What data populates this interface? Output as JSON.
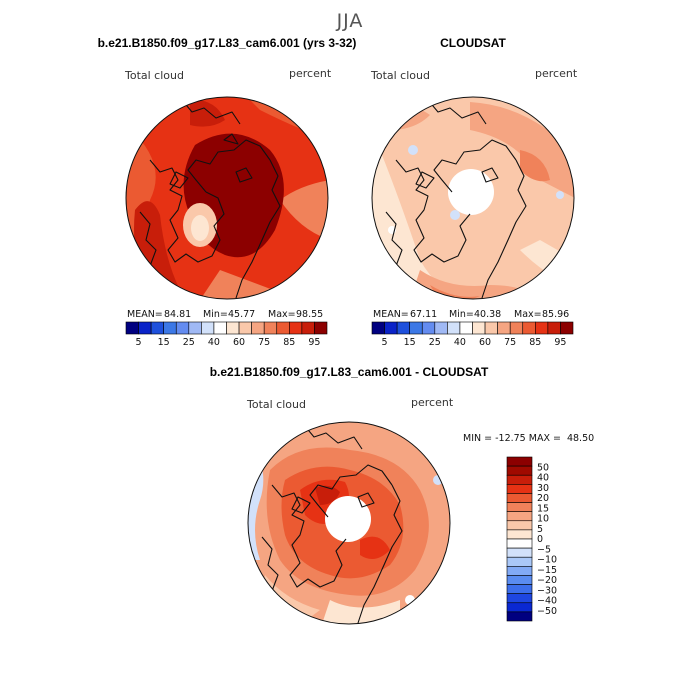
{
  "suptitle": "JJA",
  "colors": {
    "main_scale": [
      "#000080",
      "#0a23c8",
      "#1e50dc",
      "#3c78e6",
      "#648cf0",
      "#a0b9f5",
      "#d2e1fa",
      "#ffffff",
      "#fde6d2",
      "#fac8aa",
      "#f5a582",
      "#f0825a",
      "#eb5a32",
      "#e63214",
      "#c81e0a",
      "#8c0000"
    ],
    "diff_scale": [
      "#000080",
      "#0a28d2",
      "#1e46e1",
      "#3c6eeb",
      "#5a8cf0",
      "#82aaf5",
      "#aac8f8",
      "#d2e1fa",
      "#ffffff",
      "#fde6d2",
      "#fac8aa",
      "#f5a582",
      "#f0825a",
      "#eb5a32",
      "#e63214",
      "#c81e0a",
      "#a00a00",
      "#8c0000"
    ],
    "background": "#ffffff"
  },
  "panels": [
    {
      "id": "model",
      "title": "b.e21.B1850.f09_g17.L83_cam6.001 (yrs 3-32)",
      "left_label": "Total cloud",
      "right_label": "percent",
      "stats": {
        "mean_label": "MEAN=",
        "mean": "84.81",
        "min_label": "Min=",
        "min": "45.77",
        "max_label": "Max=",
        "max": "98.55"
      },
      "colorbar_ticks": [
        "5",
        "15",
        "25",
        "40",
        "60",
        "75",
        "85",
        "95"
      ],
      "pole_hole": false
    },
    {
      "id": "obs",
      "title": "CLOUDSAT",
      "left_label": "Total cloud",
      "right_label": "percent",
      "stats": {
        "mean_label": "MEAN=",
        "mean": "67.11",
        "min_label": "Min=",
        "min": "40.38",
        "max_label": "Max=",
        "max": "85.96"
      },
      "colorbar_ticks": [
        "5",
        "15",
        "25",
        "40",
        "60",
        "75",
        "85",
        "95"
      ],
      "pole_hole": true
    },
    {
      "id": "diff",
      "title": "b.e21.B1850.f09_g17.L83_cam6.001 - CLOUDSAT",
      "left_label": "Total cloud",
      "right_label": "percent",
      "minmax_text": "MIN = -12.75 MAX =  48.50",
      "colorbar_ticks": [
        "50",
        "40",
        "30",
        "20",
        "15",
        "10",
        "5",
        "0",
        "−5",
        "−10",
        "−15",
        "−20",
        "−30",
        "−40",
        "−50"
      ],
      "pole_hole": true
    }
  ],
  "chart_data": [
    {
      "type": "heatmap",
      "projection": "polar-stereographic (north)",
      "title": "b.e21.B1850.f09_g17.L83_cam6.001 (yrs 3-32)",
      "variable": "Total cloud",
      "units": "percent",
      "season": "JJA",
      "mean": 84.81,
      "min": 45.77,
      "max": 98.55,
      "levels": [
        5,
        10,
        15,
        20,
        25,
        30,
        40,
        50,
        60,
        70,
        75,
        80,
        85,
        90,
        95
      ],
      "colorbar_tick_labels": [
        5,
        15,
        25,
        40,
        60,
        75,
        85,
        95
      ]
    },
    {
      "type": "heatmap",
      "projection": "polar-stereographic (north)",
      "title": "CLOUDSAT",
      "variable": "Total cloud",
      "units": "percent",
      "season": "JJA",
      "mean": 67.11,
      "min": 40.38,
      "max": 85.96,
      "levels": [
        5,
        10,
        15,
        20,
        25,
        30,
        40,
        50,
        60,
        70,
        75,
        80,
        85,
        90,
        95
      ],
      "colorbar_tick_labels": [
        5,
        15,
        25,
        40,
        60,
        75,
        85,
        95
      ]
    },
    {
      "type": "heatmap",
      "projection": "polar-stereographic (north)",
      "title": "b.e21.B1850.f09_g17.L83_cam6.001 - CLOUDSAT",
      "variable": "Total cloud",
      "units": "percent",
      "season": "JJA",
      "min": -12.75,
      "max": 48.5,
      "levels": [
        -50,
        -40,
        -30,
        -20,
        -15,
        -10,
        -5,
        0,
        5,
        10,
        15,
        20,
        30,
        40,
        50
      ],
      "colorbar_tick_labels": [
        50,
        40,
        30,
        20,
        15,
        10,
        5,
        0,
        -5,
        -10,
        -15,
        -20,
        -30,
        -40,
        -50
      ]
    }
  ]
}
